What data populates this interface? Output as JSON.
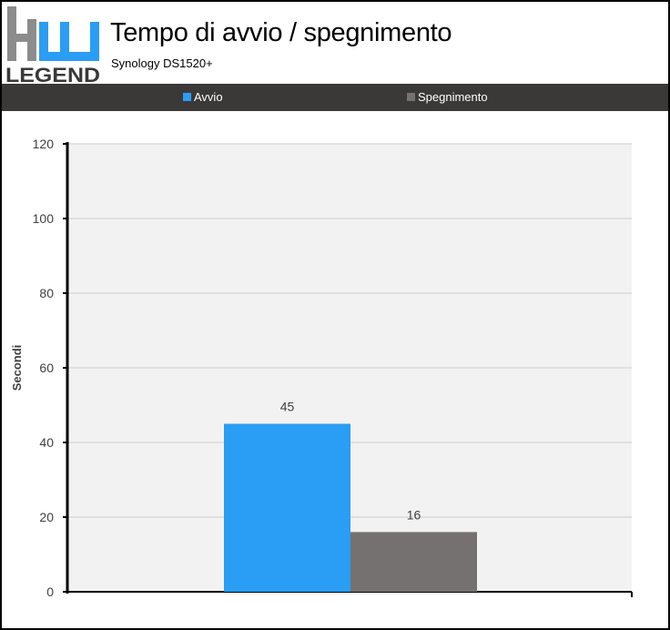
{
  "header": {
    "logo_text": "LEGEND",
    "title": "Tempo di avvio / spegnimento",
    "subtitle": "Synology DS1520+"
  },
  "colors": {
    "avvio": "#2a9df4",
    "spegnimento": "#767171",
    "legend_background": "#3b3838",
    "plot_background": "#f2f2f2"
  },
  "chart_data": {
    "type": "bar",
    "title": "Tempo di avvio / spegnimento",
    "subtitle": "Synology DS1520+",
    "categories": [
      ""
    ],
    "series": [
      {
        "name": "Avvio",
        "values": [
          45
        ],
        "color": "#2a9df4"
      },
      {
        "name": "Spegnimento",
        "values": [
          16
        ],
        "color": "#767171"
      }
    ],
    "xlabel": "",
    "ylabel": "Secondi",
    "ylim": [
      0,
      120
    ],
    "yticks": [
      0,
      20,
      40,
      60,
      80,
      100,
      120
    ],
    "data_labels": true,
    "grid": true,
    "legend_position": "top"
  }
}
